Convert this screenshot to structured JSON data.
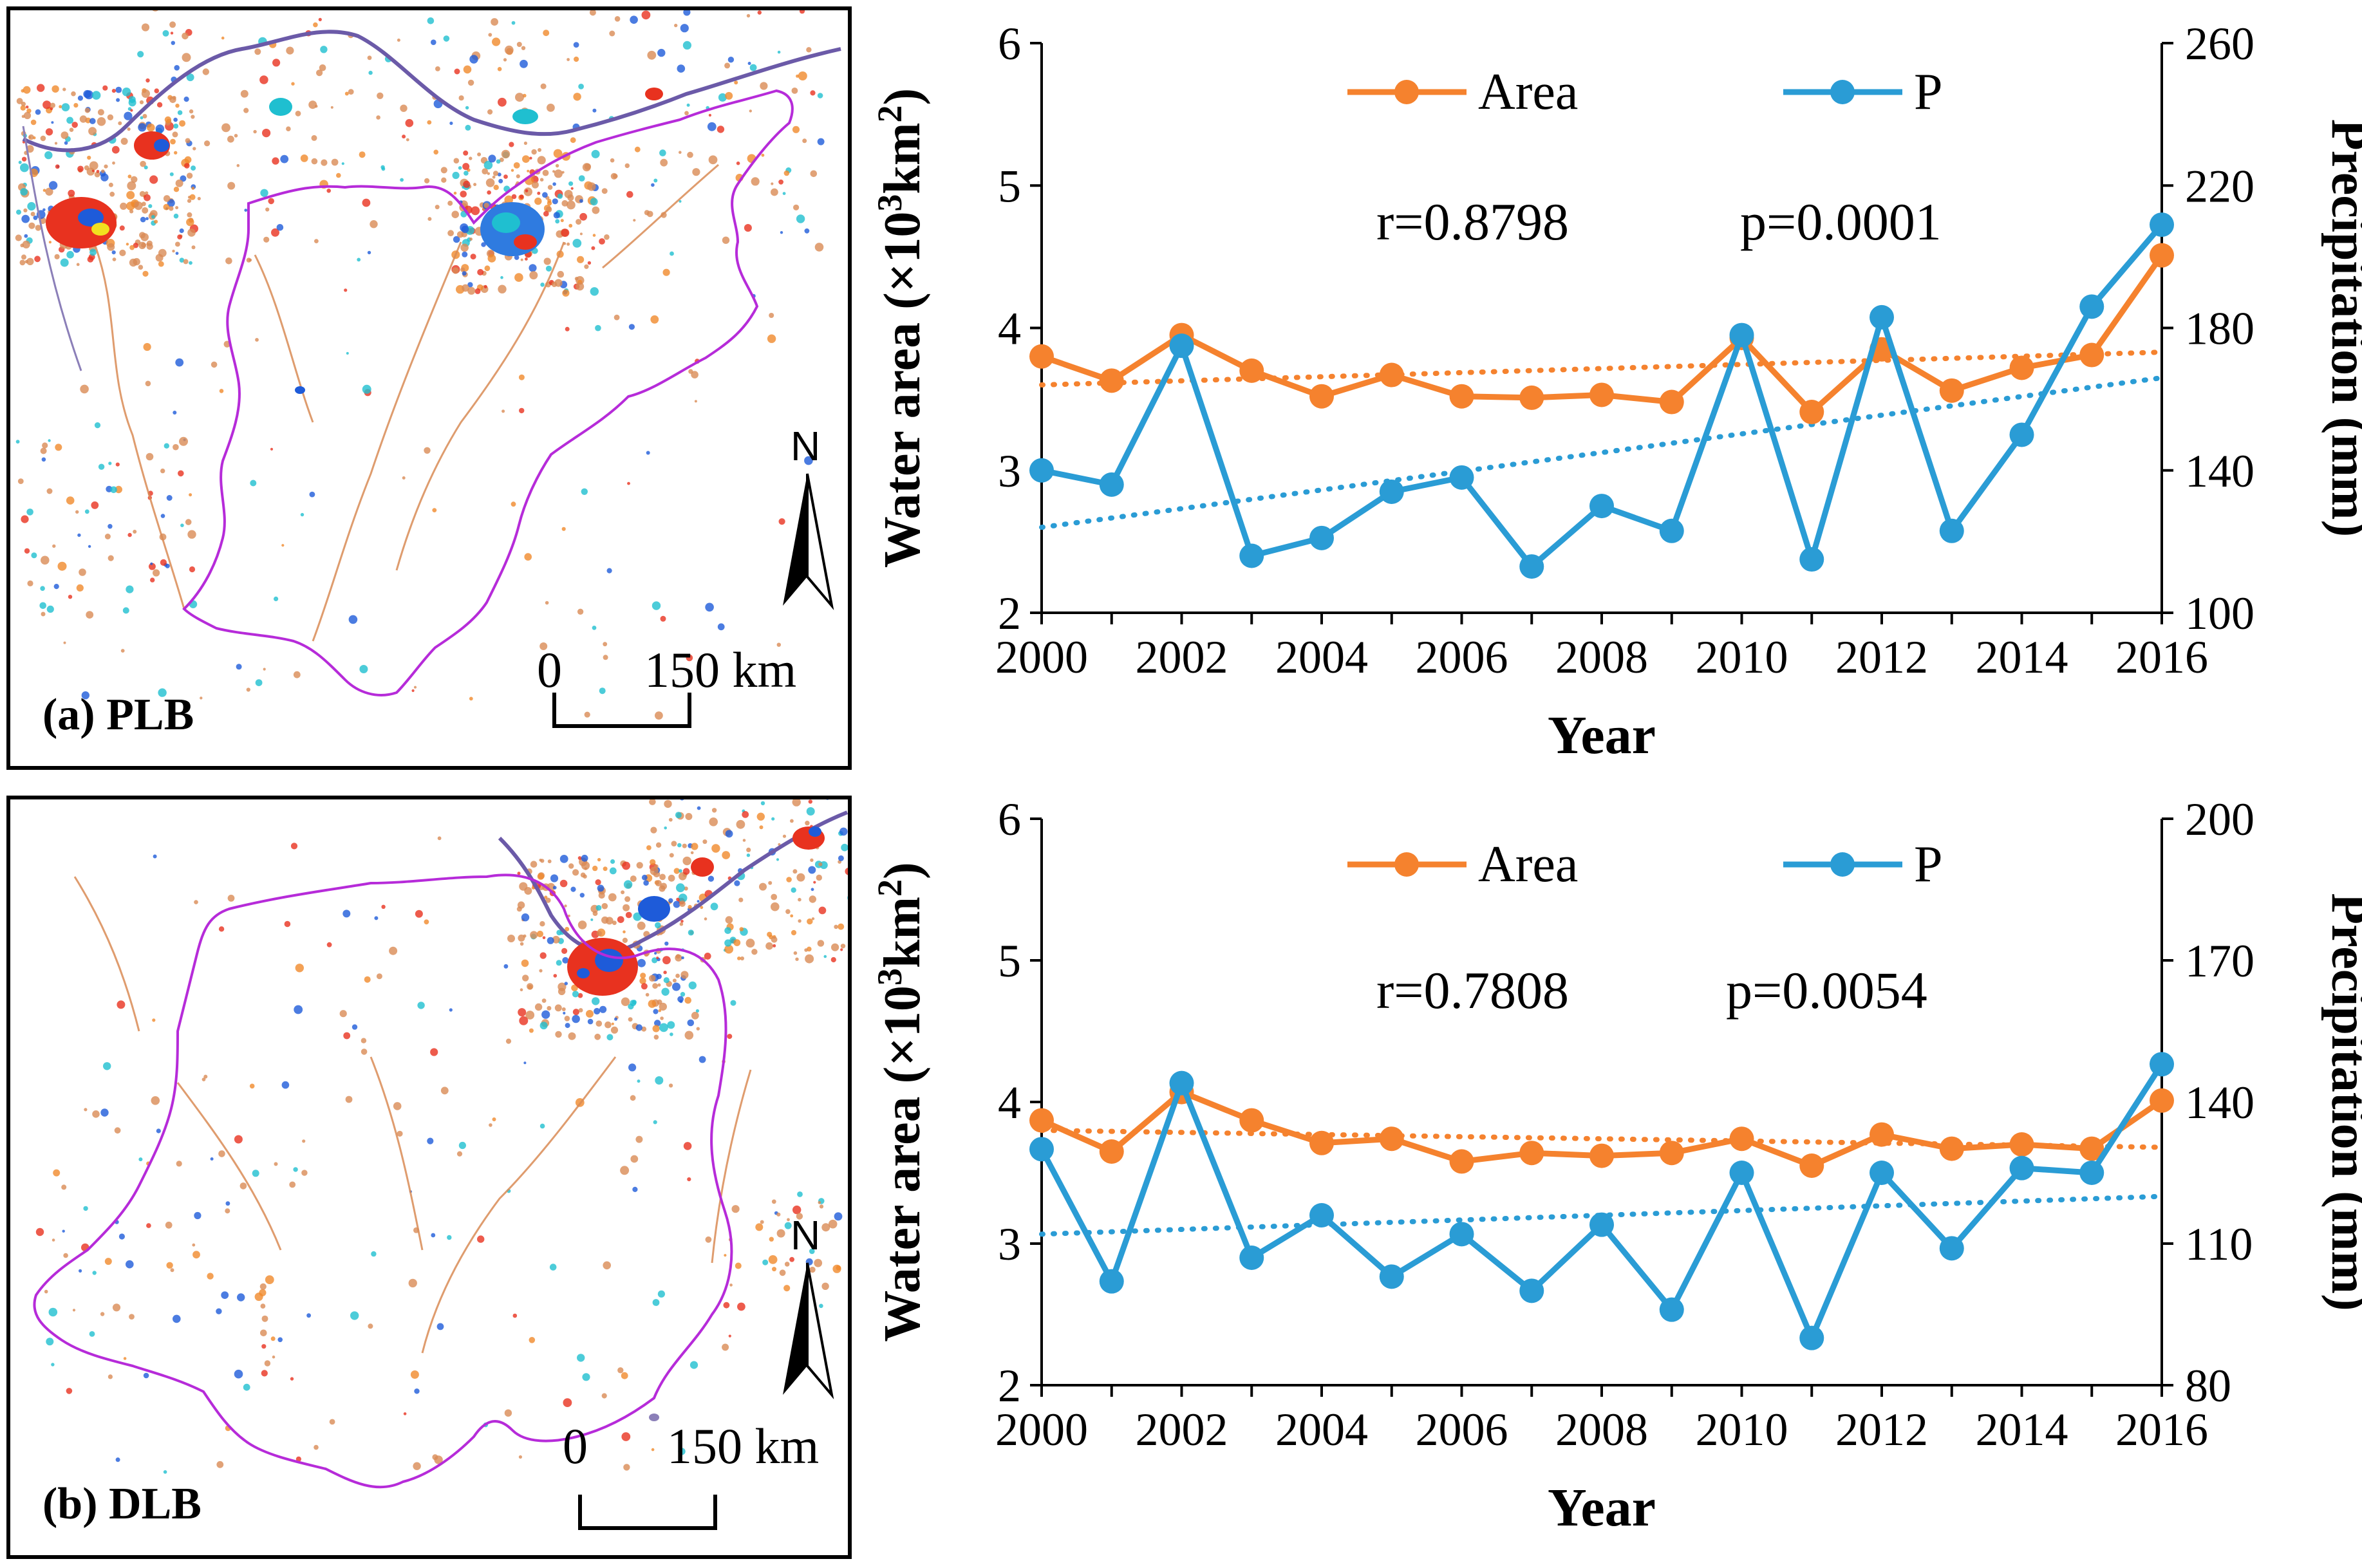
{
  "colors": {
    "area": "#F5822E",
    "precip": "#2A9CD5",
    "basin_outline": "#B62BD9",
    "river_main": "#6B5AA8",
    "river_minor": "#D98B55"
  },
  "panels": [
    {
      "label": "(a) PLB",
      "scale_zero": "0",
      "scale_end": "150 km",
      "north": "N",
      "north_icon": "north-arrow-icon"
    },
    {
      "label": "(b) DLB",
      "scale_zero": "0",
      "scale_end": "150 km",
      "north": "N",
      "north_icon": "north-arrow-icon"
    }
  ],
  "chart_data": [
    {
      "type": "line",
      "panel": "PLB",
      "x": [
        2000,
        2001,
        2002,
        2003,
        2004,
        2005,
        2006,
        2007,
        2008,
        2009,
        2010,
        2011,
        2012,
        2013,
        2014,
        2015,
        2016
      ],
      "series": [
        {
          "name": "Area",
          "axis": "left",
          "values": [
            3.8,
            3.63,
            3.95,
            3.7,
            3.52,
            3.67,
            3.52,
            3.51,
            3.53,
            3.48,
            3.93,
            3.41,
            3.85,
            3.56,
            3.72,
            3.81,
            4.51
          ],
          "trend": [
            3.6,
            3.83
          ]
        },
        {
          "name": "P",
          "axis": "right",
          "values": [
            140,
            136,
            175,
            116,
            121,
            134,
            138,
            113,
            130,
            123,
            178,
            115,
            183,
            123,
            150,
            186,
            209
          ],
          "trend": [
            124,
            166
          ]
        }
      ],
      "annotations": [
        "r=0.8798",
        "p=0.0001"
      ],
      "xlabel": "Year",
      "ylabel": "Water area (×10³km²)",
      "ylabel_parts": {
        "before": "Water area (×10",
        "sup": "3",
        "after": "km",
        "sup2": "2",
        "close": ")"
      },
      "y2label": "Precipitation (mm)",
      "xlim": [
        2000,
        2016
      ],
      "xticks": [
        "2000",
        "2002",
        "2004",
        "2006",
        "2008",
        "2010",
        "2012",
        "2014",
        "2016"
      ],
      "ylim": [
        2,
        6
      ],
      "yticks": [
        "2",
        "3",
        "4",
        "5",
        "6"
      ],
      "y2lim": [
        100,
        260
      ],
      "y2ticks": [
        "100",
        "140",
        "180",
        "220",
        "260"
      ],
      "legend": [
        "Area",
        "P"
      ]
    },
    {
      "type": "line",
      "panel": "DLB",
      "x": [
        2000,
        2001,
        2002,
        2003,
        2004,
        2005,
        2006,
        2007,
        2008,
        2009,
        2010,
        2011,
        2012,
        2013,
        2014,
        2015,
        2016
      ],
      "series": [
        {
          "name": "Area",
          "axis": "left",
          "values": [
            3.87,
            3.65,
            4.07,
            3.87,
            3.71,
            3.74,
            3.58,
            3.64,
            3.62,
            3.64,
            3.74,
            3.55,
            3.77,
            3.67,
            3.7,
            3.67,
            4.01
          ],
          "trend": [
            3.8,
            3.68
          ]
        },
        {
          "name": "P",
          "axis": "right",
          "values": [
            130,
            102,
            144,
            107,
            116,
            103,
            112,
            100,
            114,
            96,
            125,
            90,
            125,
            109,
            126,
            125,
            148
          ],
          "trend": [
            112,
            120
          ]
        }
      ],
      "annotations": [
        "r=0.7808",
        "p=0.0054"
      ],
      "xlabel": "Year",
      "ylabel": "Water area (×10³km²)",
      "ylabel_parts": {
        "before": "Water area (×10",
        "sup": "3",
        "after": "km",
        "sup2": "2",
        "close": ")"
      },
      "y2label": "Precipitation (mm)",
      "xlim": [
        2000,
        2016
      ],
      "xticks": [
        "2000",
        "2002",
        "2004",
        "2006",
        "2008",
        "2010",
        "2012",
        "2014",
        "2016"
      ],
      "ylim": [
        2,
        6
      ],
      "yticks": [
        "2",
        "3",
        "4",
        "5",
        "6"
      ],
      "y2lim": [
        80,
        200
      ],
      "y2ticks": [
        "80",
        "110",
        "140",
        "170",
        "200"
      ],
      "legend": [
        "Area",
        "P"
      ]
    }
  ]
}
